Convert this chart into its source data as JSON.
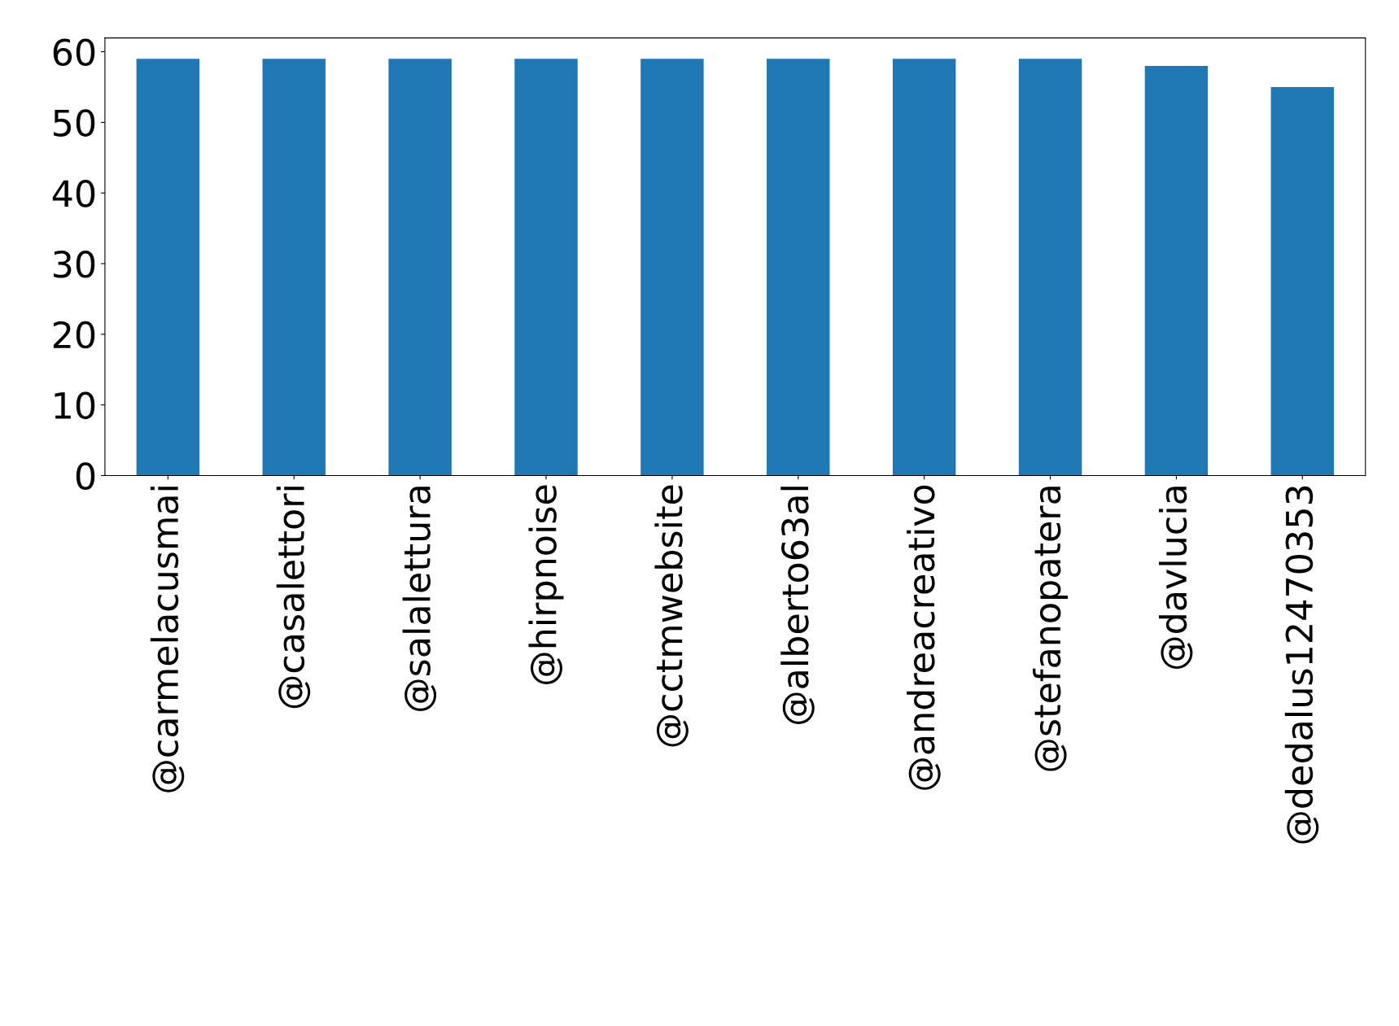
{
  "chart_data": {
    "type": "bar",
    "categories": [
      "@carmelacusmai",
      "@casalettori",
      "@salalettura",
      "@hirpnoise",
      "@cctmwebsite",
      "@alberto63al",
      "@andreacreativo",
      "@stefanopatera",
      "@davlucia",
      "@dedalus12470353"
    ],
    "values": [
      59,
      59,
      59,
      59,
      59,
      59,
      59,
      59,
      58,
      55
    ],
    "color": "#1f77b4",
    "ylim": [
      0,
      61.95
    ],
    "yticks": [
      0,
      10,
      20,
      30,
      40,
      50,
      60
    ],
    "grid": false,
    "legend": false
  }
}
